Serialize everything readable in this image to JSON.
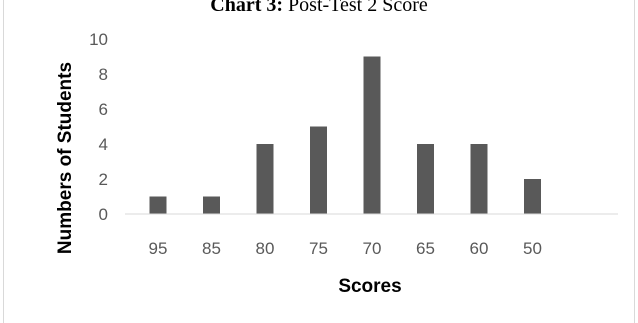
{
  "chart_data": {
    "type": "bar",
    "title_prefix": "Chart 3:",
    "title_text": "Post-Test 2 Score",
    "categories": [
      "95",
      "85",
      "80",
      "75",
      "70",
      "65",
      "60",
      "50"
    ],
    "values": [
      1,
      1,
      4,
      5,
      9,
      4,
      4,
      2
    ],
    "xlabel": "Scores",
    "ylabel": "Numbers of Students",
    "ylim": [
      0,
      10
    ],
    "yticks": [
      0,
      2,
      4,
      6,
      8,
      10
    ],
    "grid": false,
    "bar_color": "#595959",
    "axis_color": "#d9d9d9"
  }
}
